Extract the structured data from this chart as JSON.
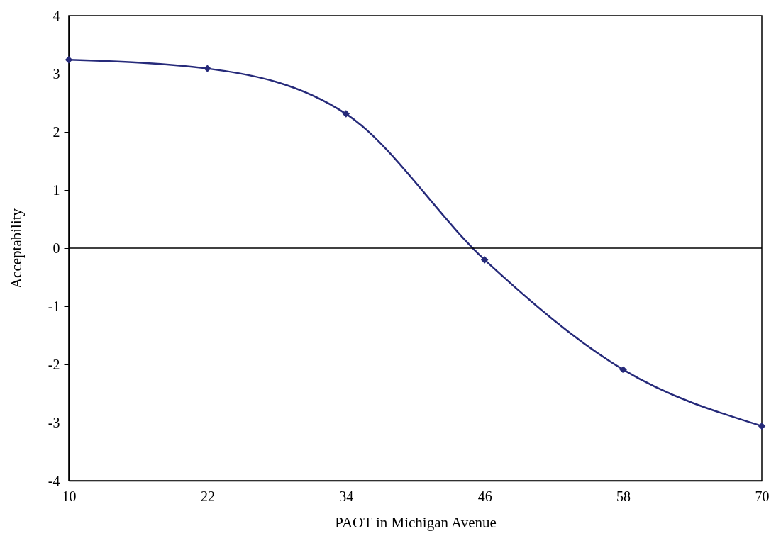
{
  "chart_data": {
    "type": "line",
    "xlabel": "PAOT in Michigan Avenue",
    "ylabel": "Acceptability",
    "x": [
      10,
      22,
      34,
      46,
      58,
      70
    ],
    "series": [
      {
        "color": "#262a7a",
        "values": [
          3.24,
          3.09,
          2.31,
          -0.2,
          -2.09,
          -3.06
        ]
      }
    ],
    "xlim": [
      10,
      70
    ],
    "xticks": [
      10,
      22,
      34,
      46,
      58,
      70
    ],
    "ylim": [
      -4,
      4
    ],
    "yticks": [
      -4,
      -3,
      -2,
      -1,
      0,
      1,
      2,
      3,
      4
    ],
    "ref_lines": [
      {
        "axis": "y",
        "value": 0,
        "color": "#000000"
      }
    ],
    "marker": "diamond",
    "line_style": "solid"
  }
}
